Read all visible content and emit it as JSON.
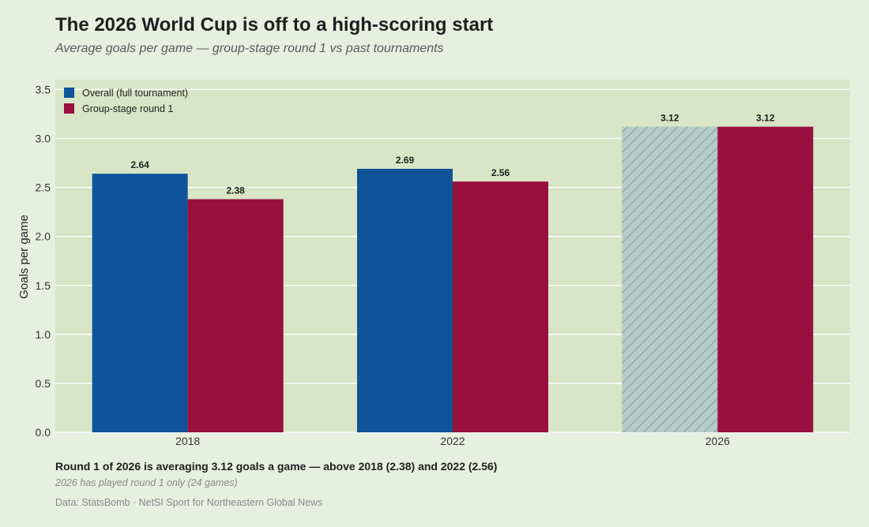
{
  "header": {
    "title": "The 2026 World Cup is off to a high-scoring start",
    "subtitle": "Average goals per game — group-stage round 1 vs past tournaments"
  },
  "footer": {
    "takeaway": "Round 1 of 2026 is averaging 3.12 goals a game — above 2018 (2.38) and 2022 (2.56)",
    "note": "2026 has played round 1 only (24 games)",
    "source": "Data: StatsBomb  ·  NetSI Sport for Northeastern Global News"
  },
  "colors": {
    "background": "#e7efdf",
    "plot_background": "#d8e5c6",
    "overall": "#0f5499",
    "round1": "#990f3d",
    "hatched_fill": "#b4cbc6",
    "hatch_line": "#6d96a3",
    "gridline": "#ffffff"
  },
  "chart_data": {
    "type": "bar",
    "categories": [
      "2018",
      "2022",
      "2026"
    ],
    "series": [
      {
        "name": "Overall (full tournament)",
        "values": [
          2.64,
          2.69,
          3.12
        ],
        "hatched": [
          false,
          false,
          true
        ]
      },
      {
        "name": "Group-stage round 1",
        "values": [
          2.38,
          2.56,
          3.12
        ],
        "hatched": [
          false,
          false,
          false
        ]
      }
    ],
    "data_labels": [
      [
        "2.64",
        "2.69",
        "3.12"
      ],
      [
        "2.38",
        "2.56",
        "3.12"
      ]
    ],
    "ylabel": "Goals per game",
    "xlabel": "",
    "ylim": [
      0,
      3.6
    ],
    "yticks": [
      0.0,
      0.5,
      1.0,
      1.5,
      2.0,
      2.5,
      3.0,
      3.5
    ],
    "ytick_labels": [
      "0.0",
      "0.5",
      "1.0",
      "1.5",
      "2.0",
      "2.5",
      "3.0",
      "3.5"
    ],
    "grid": true,
    "legend_position": "top-left"
  }
}
